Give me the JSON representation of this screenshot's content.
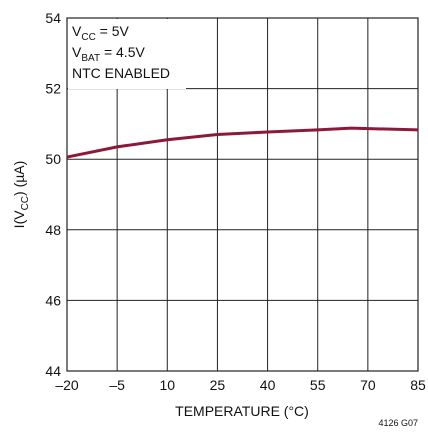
{
  "chart_data": {
    "type": "line",
    "x_label": "TEMPERATURE (°C)",
    "y_label": {
      "main": "I(V",
      "sub": "CC",
      "rest": ") (µA)"
    },
    "annotations": [
      {
        "main": "V",
        "sub": "CC",
        "rest": " = 5V"
      },
      {
        "main": "V",
        "sub": "BAT",
        "rest": " = 4.5V"
      },
      {
        "main": "NTC ENABLED",
        "sub": "",
        "rest": ""
      }
    ],
    "figure_id": "4126 G07",
    "x": [
      -20,
      -5,
      10,
      25,
      40,
      55,
      65,
      85
    ],
    "series": [
      {
        "color": "#8b1a3a",
        "values": [
          50.06,
          50.35,
          50.55,
          50.7,
          50.77,
          50.83,
          50.88,
          50.83
        ]
      }
    ],
    "xlim": [
      -20,
      85
    ],
    "xticks": [
      {
        "value": -20,
        "label": "–20"
      },
      {
        "value": -5,
        "label": "–5"
      },
      10,
      25,
      40,
      55,
      70,
      85
    ],
    "ylim": [
      44,
      54
    ],
    "yticks": [
      44,
      46,
      48,
      50,
      52,
      54
    ],
    "grid": true
  }
}
